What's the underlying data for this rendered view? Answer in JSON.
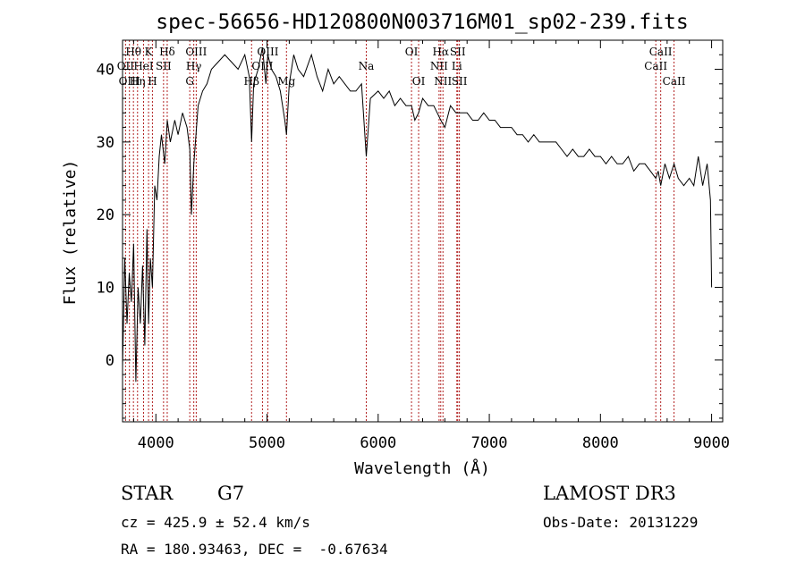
{
  "chart_data": {
    "type": "line",
    "title": "spec-56656-HD120800N003716M01_sp02-239.fits",
    "xlabel": "Wavelength (Å)",
    "ylabel": "Flux (relative)",
    "xlim": [
      3700,
      9100
    ],
    "ylim": [
      -8.5,
      44
    ],
    "x_ticks": [
      4000,
      5000,
      6000,
      7000,
      8000,
      9000
    ],
    "y_ticks": [
      0,
      10,
      20,
      30,
      40
    ],
    "grid": false,
    "legend": "none",
    "line_color": "#000000",
    "marker_color": "#b22222",
    "spectral_lines": [
      {
        "label": "Hθ",
        "wavelength": 3798,
        "row": 1
      },
      {
        "label": "OII",
        "wavelength": 3727,
        "row": 2
      },
      {
        "label": "OIII",
        "wavelength": 3762,
        "row": 3
      },
      {
        "label": "K",
        "wavelength": 3934,
        "row": 1
      },
      {
        "label": "HeI",
        "wavelength": 3889,
        "row": 2
      },
      {
        "label": "Hη",
        "wavelength": 3835,
        "row": 3
      },
      {
        "label": "H",
        "wavelength": 3969,
        "row": 3
      },
      {
        "label": "SII",
        "wavelength": 4069,
        "row": 2
      },
      {
        "label": "Hδ",
        "wavelength": 4102,
        "row": 1
      },
      {
        "label": "OIII",
        "wavelength": 4363,
        "row": 1
      },
      {
        "label": "Hγ",
        "wavelength": 4341,
        "row": 2
      },
      {
        "label": "G",
        "wavelength": 4305,
        "row": 3
      },
      {
        "label": "OIII",
        "wavelength": 5007,
        "row": 1
      },
      {
        "label": "OIII",
        "wavelength": 4959,
        "row": 2
      },
      {
        "label": "Hβ",
        "wavelength": 4861,
        "row": 3
      },
      {
        "label": "Mg",
        "wavelength": 5175,
        "row": 3
      },
      {
        "label": "Na",
        "wavelength": 5893,
        "row": 2
      },
      {
        "label": "OI",
        "wavelength": 6300,
        "row": 1
      },
      {
        "label": "OI",
        "wavelength": 6364,
        "row": 3
      },
      {
        "label": "Hα",
        "wavelength": 6563,
        "row": 1
      },
      {
        "label": "SII",
        "wavelength": 6716,
        "row": 1
      },
      {
        "label": "NII",
        "wavelength": 6548,
        "row": 2
      },
      {
        "label": "Li",
        "wavelength": 6708,
        "row": 2
      },
      {
        "label": "NII",
        "wavelength": 6583,
        "row": 3
      },
      {
        "label": "SII",
        "wavelength": 6731,
        "row": 3
      },
      {
        "label": "CaII",
        "wavelength": 8542,
        "row": 1
      },
      {
        "label": "CaII",
        "wavelength": 8498,
        "row": 2
      },
      {
        "label": "CaII",
        "wavelength": 8662,
        "row": 3
      }
    ],
    "spectrum": {
      "x": [
        3700,
        3720,
        3740,
        3760,
        3780,
        3800,
        3820,
        3840,
        3860,
        3880,
        3900,
        3920,
        3934,
        3950,
        3969,
        3990,
        4010,
        4030,
        4050,
        4080,
        4102,
        4130,
        4170,
        4200,
        4240,
        4280,
        4305,
        4320,
        4341,
        4380,
        4420,
        4460,
        4500,
        4560,
        4620,
        4680,
        4740,
        4800,
        4840,
        4861,
        4880,
        4920,
        4959,
        4990,
        5007,
        5040,
        5080,
        5120,
        5160,
        5175,
        5200,
        5240,
        5280,
        5330,
        5400,
        5450,
        5500,
        5550,
        5600,
        5650,
        5700,
        5750,
        5800,
        5850,
        5893,
        5930,
        6000,
        6050,
        6100,
        6150,
        6200,
        6250,
        6300,
        6330,
        6364,
        6400,
        6450,
        6500,
        6563,
        6600,
        6650,
        6700,
        6750,
        6800,
        6850,
        6900,
        6950,
        7000,
        7050,
        7100,
        7150,
        7200,
        7250,
        7300,
        7350,
        7400,
        7450,
        7500,
        7550,
        7600,
        7650,
        7700,
        7750,
        7800,
        7850,
        7900,
        7950,
        8000,
        8050,
        8100,
        8150,
        8200,
        8250,
        8300,
        8350,
        8400,
        8450,
        8498,
        8520,
        8542,
        8580,
        8620,
        8662,
        8700,
        8750,
        8800,
        8840,
        8880,
        8920,
        8960,
        8990,
        9000
      ],
      "y": [
        -1,
        14,
        5,
        12,
        8,
        16,
        -3,
        10,
        5,
        13,
        2,
        18,
        5,
        14,
        10,
        24,
        22,
        28,
        31,
        27,
        33,
        30,
        33,
        31,
        34,
        32,
        29,
        20,
        27,
        35,
        37,
        38,
        40,
        41,
        42,
        41,
        40,
        42,
        39,
        30,
        38,
        40,
        43,
        38,
        42,
        40,
        39,
        37,
        33,
        31,
        38,
        42,
        40,
        39,
        42,
        39,
        37,
        40,
        38,
        39,
        38,
        37,
        37,
        38,
        28,
        36,
        37,
        36,
        37,
        35,
        36,
        35,
        35,
        33,
        34,
        36,
        35,
        35,
        33,
        32,
        35,
        34,
        34,
        34,
        33,
        33,
        34,
        33,
        33,
        32,
        32,
        32,
        31,
        31,
        30,
        31,
        30,
        30,
        30,
        30,
        29,
        28,
        29,
        28,
        28,
        29,
        28,
        28,
        27,
        28,
        27,
        27,
        28,
        26,
        27,
        27,
        26,
        25,
        26,
        24,
        27,
        25,
        27,
        25,
        24,
        25,
        24,
        28,
        24,
        27,
        22,
        10
      ]
    }
  },
  "info": {
    "object_class": "STAR",
    "subclass": "G7",
    "survey": "LAMOST DR3",
    "redshift": "cz = 425.9 ± 52.4 km/s",
    "obs_date": "Obs-Date: 20131229",
    "coordinates": "RA = 180.93463, DEC =  -0.67634"
  }
}
